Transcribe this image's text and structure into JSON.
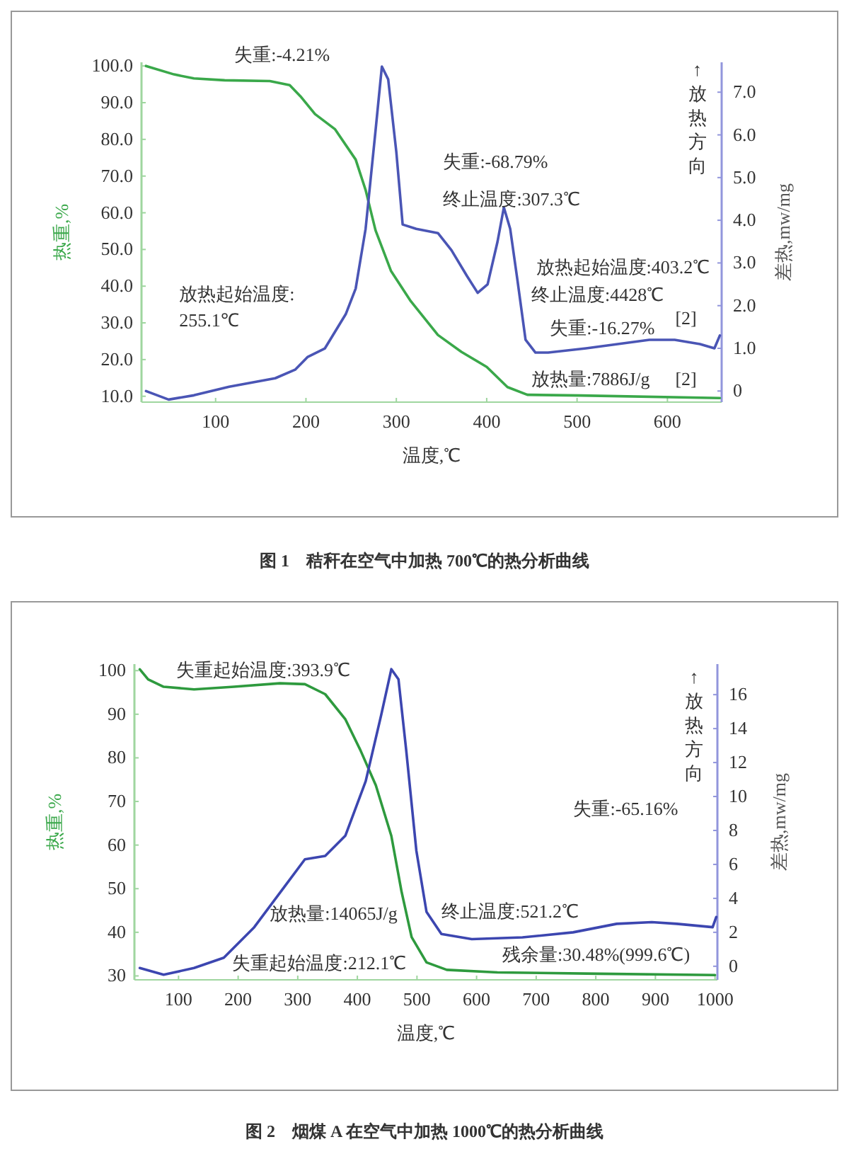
{
  "chart_data": [
    {
      "type": "line",
      "title": "图 1　秸秆在空气中加热 700℃的热分析曲线",
      "xlabel": "温度,℃",
      "ylabel": "热重,%",
      "y2label": "差热,mw/mg",
      "xlim": [
        18,
        660
      ],
      "ylim": [
        8.4,
        101
      ],
      "y2lim": [
        -0.26,
        7.7
      ],
      "xticks": [
        100,
        200,
        300,
        400,
        500,
        600
      ],
      "yticks": [
        {
          "value": 10,
          "label": "10.0"
        },
        {
          "value": 20,
          "label": "20.0"
        },
        {
          "value": 30,
          "label": "30.0"
        },
        {
          "value": 40,
          "label": "40.0"
        },
        {
          "value": 50,
          "label": "50.0"
        },
        {
          "value": 60,
          "label": "60.0"
        },
        {
          "value": 70,
          "label": "70.0"
        },
        {
          "value": 80,
          "label": "80.0"
        },
        {
          "value": 90,
          "label": "90.0"
        },
        {
          "value": 100,
          "label": "100.0"
        }
      ],
      "y2ticks": [
        0,
        {
          "value": 1,
          "label": "1.0"
        },
        {
          "value": 2,
          "label": "2.0"
        },
        {
          "value": 3,
          "label": "3.0"
        },
        {
          "value": 4,
          "label": "4.0"
        },
        {
          "value": 5,
          "label": "5.0"
        },
        {
          "value": 6,
          "label": "6.0"
        },
        {
          "value": 7,
          "label": "7.0"
        }
      ],
      "series": [
        {
          "color": "#3aa84a",
          "x": [
            23,
            54,
            76,
            110,
            160,
            182,
            194,
            210,
            232,
            255,
            266,
            277,
            294,
            316,
            346,
            372,
            400,
            423,
            445,
            504,
            658
          ],
          "values": [
            100.0,
            97.7,
            96.6,
            96.1,
            95.9,
            94.8,
            91.7,
            86.9,
            82.8,
            74.5,
            66.2,
            55.2,
            44.2,
            35.9,
            26.7,
            22.1,
            18.0,
            12.5,
            10.4,
            10.2,
            9.5
          ]
        },
        {
          "color": "#4a55b5",
          "axis": "y2",
          "x": [
            23,
            48,
            76,
            115,
            166,
            188,
            202,
            221,
            244,
            255,
            266,
            277,
            284,
            291,
            300,
            307,
            322,
            346,
            361,
            378,
            390,
            401,
            412,
            419,
            426,
            434,
            443,
            454,
            468,
            510,
            580,
            608,
            636,
            652,
            658
          ],
          "values": [
            0.0,
            -0.2,
            -0.1,
            0.1,
            0.3,
            0.5,
            0.8,
            1.0,
            1.8,
            2.4,
            3.8,
            6.1,
            7.6,
            7.3,
            5.6,
            3.9,
            3.8,
            3.7,
            3.3,
            2.7,
            2.3,
            2.5,
            3.5,
            4.3,
            3.8,
            2.6,
            1.2,
            0.9,
            0.9,
            1.0,
            1.2,
            1.2,
            1.1,
            1.0,
            1.3
          ]
        }
      ],
      "annotations": [
        "失重:-4.21%",
        "失重:-68.79%",
        "终止温度:307.3℃",
        "放热起始温度:403.2℃",
        "放热起始温度:",
        "255.1℃",
        "放热量:7886J/g",
        "终止温度:4428℃",
        "失重:-16.27%",
        "[2]",
        "[2]",
        "↑放热方向"
      ]
    },
    {
      "type": "line",
      "title": "图 2　烟煤 A 在空气中加热 1000℃的热分析曲线",
      "xlabel": "温度,℃",
      "ylabel": "热重,%",
      "y2label": "差热,mw/mg",
      "xlim": [
        26,
        1004
      ],
      "ylim": [
        29.1,
        101.5
      ],
      "y2lim": [
        -0.8,
        17.8
      ],
      "xticks": [
        100,
        200,
        300,
        400,
        500,
        600,
        700,
        800,
        900,
        1000
      ],
      "yticks": [
        30,
        40,
        50,
        60,
        70,
        80,
        90,
        100
      ],
      "y2ticks": [
        0,
        2,
        4,
        6,
        8,
        10,
        12,
        14,
        16
      ],
      "series": [
        {
          "color": "#2e9a3e",
          "x": [
            35,
            49,
            75,
            126,
            193,
            270,
            312,
            346,
            380,
            405,
            431,
            457,
            474,
            491,
            516,
            550,
            635,
            805,
            1000
          ],
          "values": [
            100.3,
            98,
            96.3,
            95.7,
            96.3,
            97.1,
            96.9,
            94.6,
            88.8,
            81.8,
            73.7,
            62.1,
            49.4,
            38.9,
            33.1,
            31.4,
            30.8,
            30.5,
            30.2
          ]
        },
        {
          "color": "#3c46b0",
          "axis": "y2",
          "x": [
            35,
            75,
            126,
            176,
            227,
            278,
            312,
            346,
            380,
            414,
            440,
            457,
            469,
            482,
            499,
            516,
            541,
            592,
            677,
            762,
            835,
            894,
            936,
            996,
            1002
          ],
          "values": [
            -0.1,
            -0.5,
            -0.1,
            0.5,
            2.3,
            4.7,
            6.3,
            6.5,
            7.7,
            10.9,
            14.8,
            17.5,
            16.9,
            12.7,
            6.8,
            3.2,
            1.9,
            1.6,
            1.7,
            2.0,
            2.5,
            2.6,
            2.5,
            2.3,
            2.9
          ]
        }
      ],
      "annotations": [
        "失重起始温度:393.9℃",
        "失重:-65.16%",
        "放热量:14065J/g",
        "终止温度:521.2℃",
        "失重起始温度:212.1℃",
        "残余量:30.48%(999.6℃)",
        "↑放热方向"
      ]
    }
  ]
}
